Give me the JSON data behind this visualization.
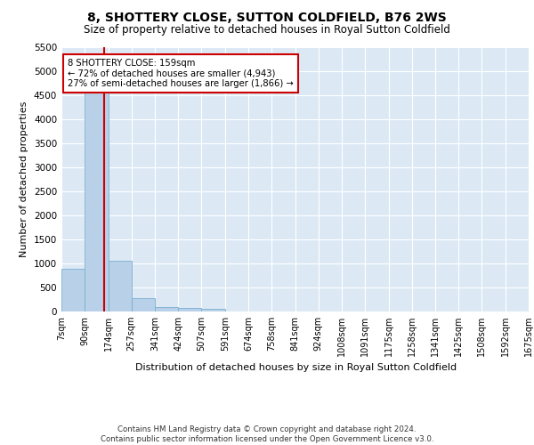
{
  "title": "8, SHOTTERY CLOSE, SUTTON COLDFIELD, B76 2WS",
  "subtitle": "Size of property relative to detached houses in Royal Sutton Coldfield",
  "xlabel": "Distribution of detached houses by size in Royal Sutton Coldfield",
  "ylabel": "Number of detached properties",
  "footer_line1": "Contains HM Land Registry data © Crown copyright and database right 2024.",
  "footer_line2": "Contains public sector information licensed under the Open Government Licence v3.0.",
  "annotation_title": "8 SHOTTERY CLOSE: 159sqm",
  "annotation_line2": "← 72% of detached houses are smaller (4,943)",
  "annotation_line3": "27% of semi-detached houses are larger (1,866) →",
  "property_size": 159,
  "bin_edges": [
    7,
    90,
    174,
    257,
    341,
    424,
    507,
    591,
    674,
    758,
    841,
    924,
    1008,
    1091,
    1175,
    1258,
    1341,
    1425,
    1508,
    1592,
    1675
  ],
  "bar_heights": [
    880,
    4540,
    1060,
    280,
    90,
    80,
    55,
    0,
    0,
    0,
    0,
    0,
    0,
    0,
    0,
    0,
    0,
    0,
    0,
    0
  ],
  "bar_color": "#b8d0e8",
  "bar_edge_color": "#7aafd0",
  "vline_color": "#cc0000",
  "background_color": "#dce9f5",
  "ylim": [
    0,
    5500
  ],
  "yticks": [
    0,
    500,
    1000,
    1500,
    2000,
    2500,
    3000,
    3500,
    4000,
    4500,
    5000,
    5500
  ],
  "title_fontsize": 10,
  "subtitle_fontsize": 8.5
}
